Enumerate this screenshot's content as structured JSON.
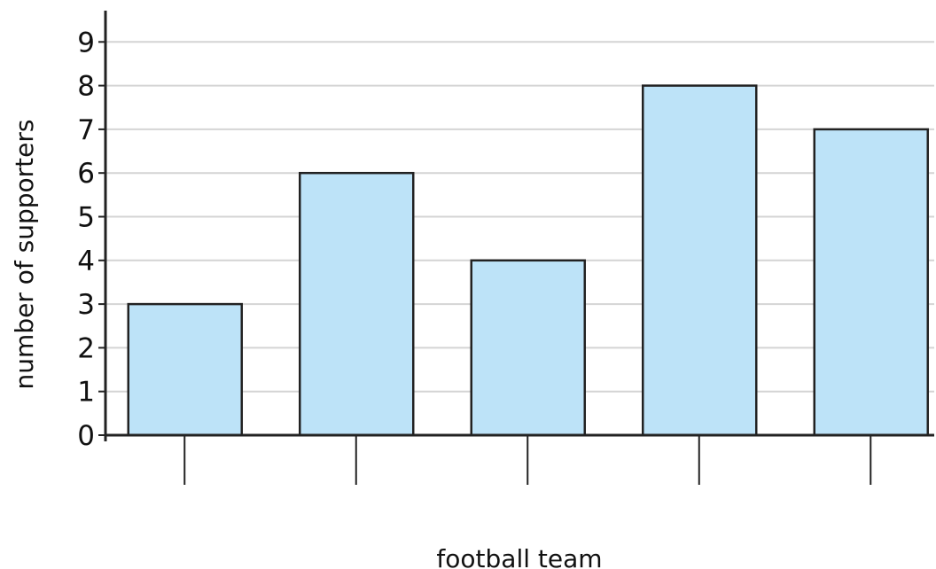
{
  "chart_data": {
    "type": "bar",
    "title": "",
    "xlabel": "football team",
    "ylabel": "number of supporters",
    "categories": [
      "",
      "",
      "",
      "",
      ""
    ],
    "values": [
      3,
      6,
      4,
      8,
      7
    ],
    "ylim": [
      0,
      9
    ],
    "y_ticks": [
      "0",
      "1",
      "2",
      "3",
      "4",
      "5",
      "6",
      "7",
      "8",
      "9"
    ],
    "grid": true,
    "legend": "none",
    "colors": {
      "bar_fill": "#bde3f8",
      "bar_stroke": "#222222",
      "grid": "#d4d4d4",
      "axis": "#222222"
    }
  }
}
